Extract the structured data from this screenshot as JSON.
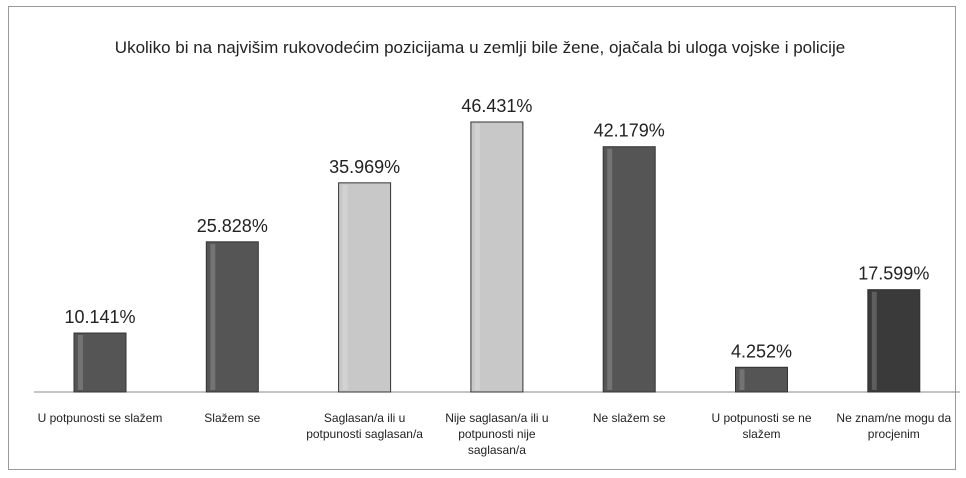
{
  "chart_data": {
    "type": "bar",
    "title": "Ukoliko bi  na najvišim rukovodećim pozicijama u zemlji bile žene, ojačala bi uloga vojske i policije",
    "categories": [
      "U potpunosti  se slažem",
      "Slažem se",
      "Saglasan/a ili u potpunosti saglasan/a",
      "Nije saglasan/a ili u potpunosti nije saglasan/a",
      "Ne slažem se",
      "U potpunosti  se ne slažem",
      "Ne znam/ne mogu da procjenim"
    ],
    "values": [
      10.141,
      25.828,
      35.969,
      46.431,
      42.179,
      4.252,
      17.599
    ],
    "value_labels": [
      "10.141%",
      "25.828%",
      "35.969%",
      "46.431%",
      "42.179%",
      "4.252%",
      "17.599%"
    ],
    "colors": [
      "#555555",
      "#555555",
      "#c8c8c8",
      "#c8c8c8",
      "#555555",
      "#555555",
      "#3a3a3a"
    ]
  }
}
